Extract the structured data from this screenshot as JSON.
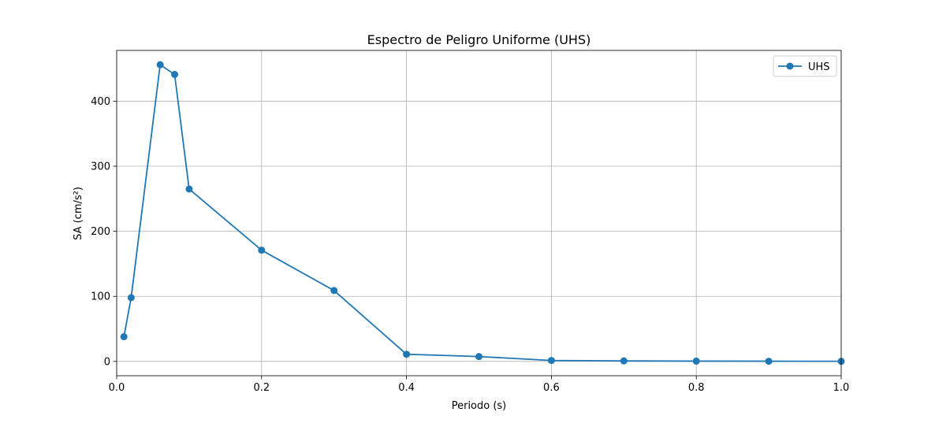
{
  "chart_data": {
    "type": "line",
    "title": "Espectro de Peligro Uniforme (UHS)",
    "xlabel": "Periodo (s)",
    "ylabel": "SA (cm/s²)",
    "xlim": [
      0,
      1.0
    ],
    "ylim": [
      -22,
      478
    ],
    "xticks": [
      0.0,
      0.2,
      0.4,
      0.6,
      0.8,
      1.0
    ],
    "xtick_labels": [
      "0.0",
      "0.2",
      "0.4",
      "0.6",
      "0.8",
      "1.0"
    ],
    "yticks": [
      0,
      100,
      200,
      300,
      400
    ],
    "ytick_labels": [
      "0",
      "100",
      "200",
      "300",
      "400"
    ],
    "grid": true,
    "legend_position": "top-right",
    "series": [
      {
        "name": "UHS",
        "color": "#1f77b4",
        "marker": "circle",
        "x": [
          0.01,
          0.02,
          0.06,
          0.08,
          0.1,
          0.2,
          0.3,
          0.4,
          0.5,
          0.6,
          0.7,
          0.8,
          0.9,
          1.0
        ],
        "y": [
          38,
          98,
          456,
          441,
          265,
          171,
          109,
          11,
          7.5,
          1.5,
          0.8,
          0.5,
          0.3,
          0.2
        ]
      }
    ]
  }
}
